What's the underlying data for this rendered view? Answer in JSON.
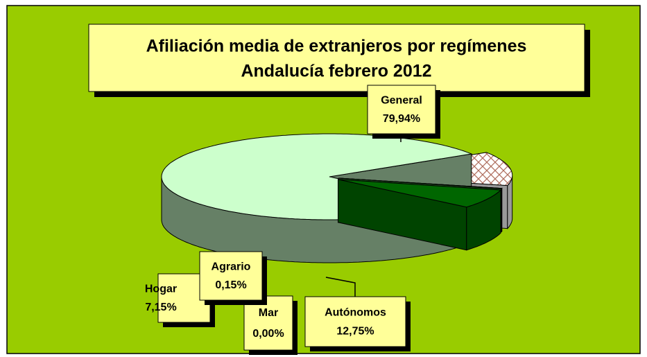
{
  "chart_data": {
    "type": "pie",
    "title": "Afiliación media de extranjeros por regímenes",
    "subtitle": "Andalucía febrero 2012",
    "categories": [
      "General",
      "Autónomos",
      "Mar",
      "Agrario",
      "Hogar"
    ],
    "values": [
      79.94,
      12.75,
      0.0,
      0.15,
      7.15
    ],
    "value_labels": [
      "79,94%",
      "12,75%",
      "0,00%",
      "0,15%",
      "7,15%"
    ],
    "colors": [
      "#ccffcc",
      "#ffffff",
      "#000000",
      "#339933",
      "#006600"
    ]
  }
}
